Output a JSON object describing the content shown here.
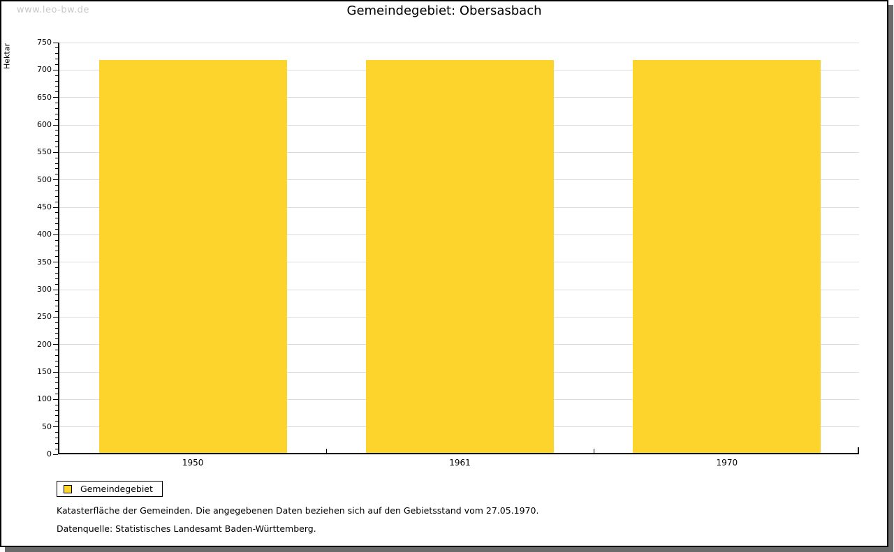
{
  "watermark": "www.leo-bw.de",
  "header": {
    "title": "Gemeindegebiet: Obersasbach"
  },
  "chart_data": {
    "type": "bar",
    "title": "Gemeindegebiet: Obersasbach",
    "categories": [
      "1950",
      "1961",
      "1970"
    ],
    "series": [
      {
        "name": "Gemeindegebiet",
        "values": [
          716,
          716,
          716
        ]
      }
    ],
    "ylabel": "Hektar",
    "xlabel": "",
    "ylim": [
      0,
      750
    ],
    "ytick_step": 50,
    "yminor_tick_step": 10,
    "grid": true,
    "legend_position": "bottom-left"
  },
  "legend": {
    "label": "Gemeindegebiet"
  },
  "footer": {
    "note": "Katasterfläche der Gemeinden. Die angegebenen Daten beziehen sich auf den Gebietsstand vom 27.05.1970.",
    "source": "Datenquelle: Statistisches Landesamt Baden-Württemberg."
  },
  "colors": {
    "bar": "#FDD42C",
    "grid": "#dcdcdc",
    "axis": "#000000",
    "watermark": "#c9c9c9",
    "shadow": "#6b6b6b"
  }
}
